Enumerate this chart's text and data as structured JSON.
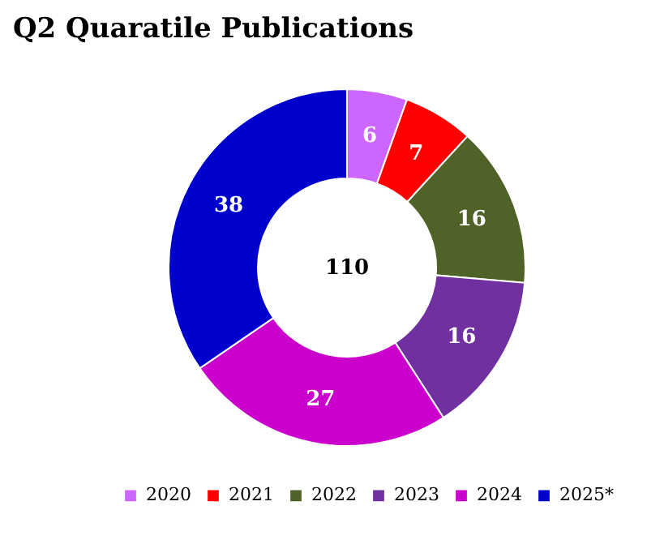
{
  "chart_data": {
    "type": "donut",
    "title": "Q2 Quaratile Publications",
    "categories": [
      "2020",
      "2021",
      "2022",
      "2023",
      "2024",
      "2025*"
    ],
    "values": [
      6,
      7,
      16,
      16,
      27,
      38
    ],
    "colors": [
      "#cc66ff",
      "#ff0000",
      "#4f6228",
      "#7030a0",
      "#cc00cc",
      "#0000cc"
    ],
    "data_labels": true,
    "legend": "bottom",
    "annotations": [
      "110"
    ]
  }
}
